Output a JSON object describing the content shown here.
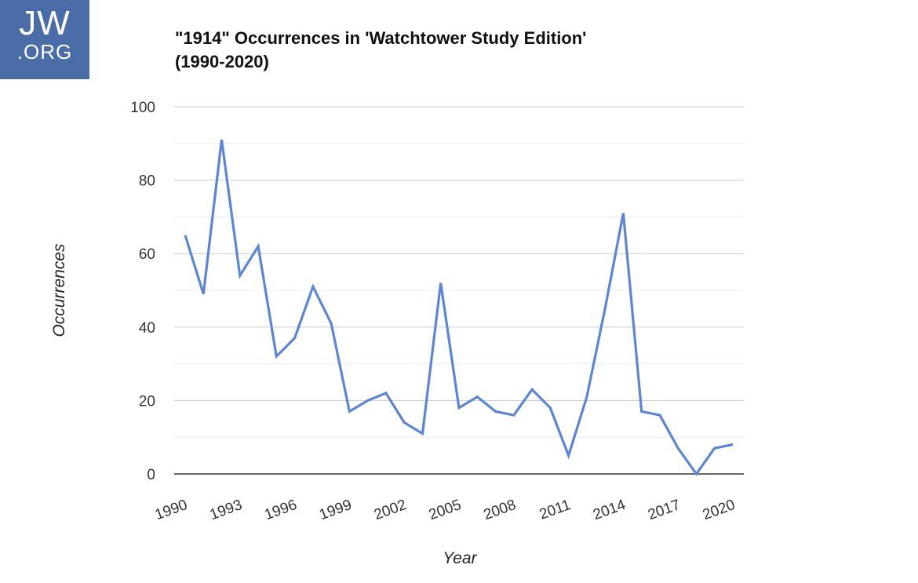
{
  "logo": {
    "top": "JW",
    "bottom": ".ORG"
  },
  "chart_data": {
    "type": "line",
    "title": "\"1914\" Occurrences in 'Watchtower Study Edition' (1990-2020)",
    "xlabel": "Year",
    "ylabel": "Occurrences",
    "x": [
      1990,
      1991,
      1992,
      1993,
      1994,
      1995,
      1996,
      1997,
      1998,
      1999,
      2000,
      2001,
      2002,
      2003,
      2004,
      2005,
      2006,
      2007,
      2008,
      2009,
      2010,
      2011,
      2012,
      2013,
      2014,
      2015,
      2016,
      2017,
      2018,
      2019,
      2020
    ],
    "series": [
      {
        "values": [
          65,
          49,
          91,
          54,
          62,
          32,
          37,
          51,
          41,
          17,
          20,
          22,
          14,
          11,
          52,
          18,
          21,
          17,
          16,
          23,
          18,
          5,
          21,
          45,
          71,
          17,
          16,
          7,
          0,
          7,
          8
        ]
      }
    ],
    "xticks": [
      "1990",
      "1993",
      "1996",
      "1999",
      "2002",
      "2005",
      "2008",
      "2011",
      "2014",
      "2017",
      "2020"
    ],
    "yticks": [
      "0",
      "20",
      "40",
      "60",
      "80",
      "100"
    ],
    "ylim": [
      0,
      100
    ],
    "xlim": [
      1990,
      2020
    ],
    "grid": true,
    "legend": "none",
    "line_color": "#5b85d6"
  }
}
